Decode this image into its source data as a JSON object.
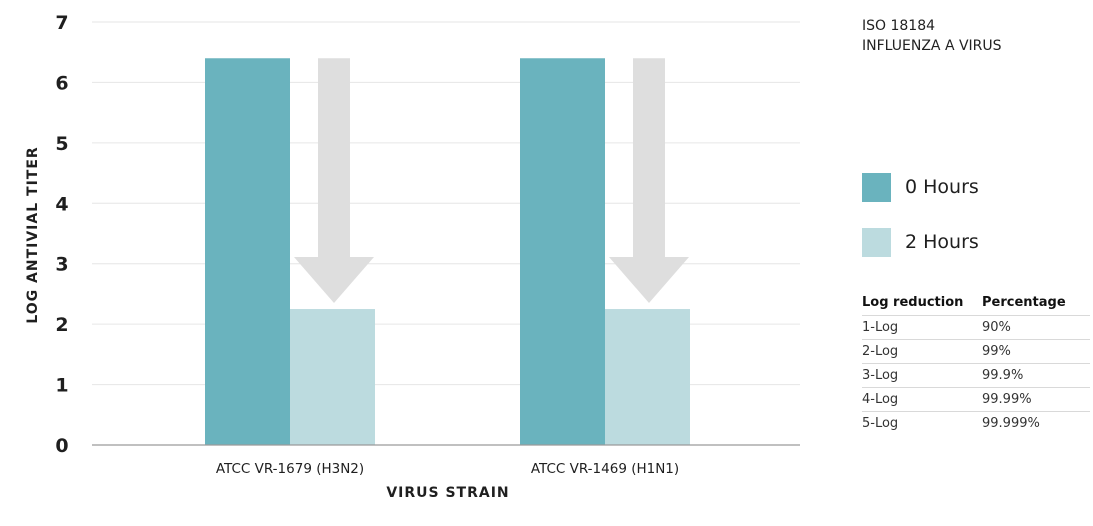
{
  "chart_data": {
    "type": "bar",
    "title": "",
    "xlabel": "VIRUS STRAIN",
    "ylabel": "LOG ANTIVIAL TITER",
    "ylim": [
      0,
      7
    ],
    "yticks": [
      "0",
      "1",
      "2",
      "3",
      "4",
      "5",
      "6",
      "7"
    ],
    "grid": true,
    "legend_position": "right",
    "categories": [
      "ATCC VR-1679 (H3N2)",
      "ATCC VR-1469 (H1N1)"
    ],
    "series": [
      {
        "name": "0 Hours",
        "values": [
          6.4,
          6.4
        ],
        "color": "#6ab3be"
      },
      {
        "name": "2 Hours",
        "values": [
          2.25,
          2.25
        ],
        "color": "#bcdbdf"
      }
    ],
    "annotations": [
      {
        "type": "reduction-arrow",
        "category": "ATCC VR-1679 (H3N2)",
        "from": 6.4,
        "to": 2.25,
        "color": "#dedede"
      },
      {
        "type": "reduction-arrow",
        "category": "ATCC VR-1469 (H1N1)",
        "from": 6.4,
        "to": 2.25,
        "color": "#dedede"
      }
    ]
  },
  "side_title": {
    "line1": "ISO 18184",
    "line2": "INFLUENZA A VIRUS"
  },
  "legend": [
    {
      "label": "0 Hours",
      "color": "#6ab3be"
    },
    {
      "label": "2 Hours",
      "color": "#bcdbdf"
    }
  ],
  "log_table": {
    "headers": [
      "Log reduction",
      "Percentage"
    ],
    "rows": [
      [
        "1-Log",
        "90%"
      ],
      [
        "2-Log",
        "99%"
      ],
      [
        "3-Log",
        "99.9%"
      ],
      [
        "4-Log",
        "99.99%"
      ],
      [
        "5-Log",
        "99.999%"
      ]
    ]
  }
}
